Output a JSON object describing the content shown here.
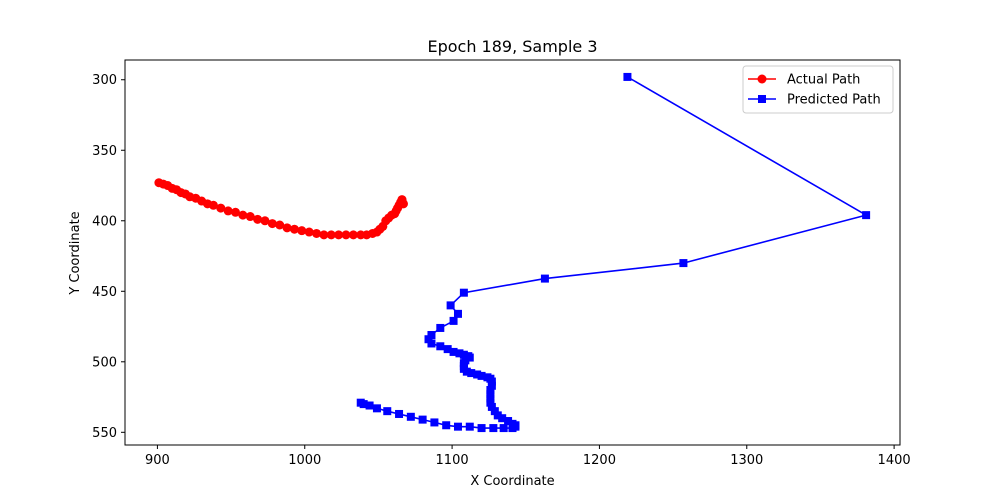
{
  "chart_data": {
    "type": "line",
    "title": "Epoch 189, Sample 3",
    "xlabel": "X Coordinate",
    "ylabel": "Y Coordinate",
    "xlim": [
      878,
      1404
    ],
    "ylim": [
      559,
      286
    ],
    "y_inverted": true,
    "xticks": [
      900,
      1000,
      1100,
      1200,
      1300,
      1400
    ],
    "yticks": [
      300,
      350,
      400,
      450,
      500,
      550
    ],
    "grid": false,
    "legend_position": "top-right",
    "series": [
      {
        "name": "Actual Path",
        "color": "#ff0000",
        "marker": "circle",
        "points": [
          [
            901,
            373
          ],
          [
            904,
            374
          ],
          [
            907,
            375
          ],
          [
            910,
            377
          ],
          [
            913,
            378
          ],
          [
            916,
            380
          ],
          [
            919,
            381
          ],
          [
            922,
            383
          ],
          [
            926,
            384
          ],
          [
            930,
            386
          ],
          [
            934,
            388
          ],
          [
            938,
            389
          ],
          [
            943,
            391
          ],
          [
            948,
            393
          ],
          [
            953,
            394
          ],
          [
            958,
            396
          ],
          [
            963,
            397
          ],
          [
            968,
            399
          ],
          [
            973,
            400
          ],
          [
            978,
            402
          ],
          [
            983,
            403
          ],
          [
            988,
            405
          ],
          [
            993,
            406
          ],
          [
            998,
            407
          ],
          [
            1003,
            408
          ],
          [
            1008,
            409
          ],
          [
            1013,
            410
          ],
          [
            1018,
            410
          ],
          [
            1023,
            410
          ],
          [
            1028,
            410
          ],
          [
            1033,
            410
          ],
          [
            1038,
            410
          ],
          [
            1042,
            410
          ],
          [
            1046,
            409
          ],
          [
            1049,
            408
          ],
          [
            1051,
            406
          ],
          [
            1053,
            404
          ],
          [
            1055,
            400
          ],
          [
            1057,
            398
          ],
          [
            1059,
            396
          ],
          [
            1061,
            395
          ],
          [
            1062,
            393
          ],
          [
            1063,
            391
          ],
          [
            1064,
            389
          ],
          [
            1065,
            387
          ],
          [
            1066,
            386
          ],
          [
            1066,
            385
          ],
          [
            1067,
            388
          ]
        ]
      },
      {
        "name": "Predicted Path",
        "color": "#0000ff",
        "marker": "square",
        "points": [
          [
            1219,
            298
          ],
          [
            1381,
            396
          ],
          [
            1257,
            430
          ],
          [
            1163,
            441
          ],
          [
            1108,
            451
          ],
          [
            1099,
            460
          ],
          [
            1104,
            466
          ],
          [
            1101,
            471
          ],
          [
            1092,
            476
          ],
          [
            1086,
            481
          ],
          [
            1084,
            484
          ],
          [
            1086,
            487
          ],
          [
            1092,
            489
          ],
          [
            1097,
            491
          ],
          [
            1101,
            493
          ],
          [
            1105,
            494
          ],
          [
            1108,
            495
          ],
          [
            1111,
            496
          ],
          [
            1112,
            497
          ],
          [
            1109,
            499
          ],
          [
            1108,
            501
          ],
          [
            1108,
            503
          ],
          [
            1108,
            505
          ],
          [
            1110,
            507
          ],
          [
            1113,
            508
          ],
          [
            1117,
            509
          ],
          [
            1120,
            510
          ],
          [
            1124,
            511
          ],
          [
            1126,
            512
          ],
          [
            1127,
            514
          ],
          [
            1127,
            517
          ],
          [
            1126,
            520
          ],
          [
            1126,
            523
          ],
          [
            1126,
            526
          ],
          [
            1126,
            529
          ],
          [
            1127,
            532
          ],
          [
            1129,
            535
          ],
          [
            1131,
            538
          ],
          [
            1134,
            540
          ],
          [
            1138,
            542
          ],
          [
            1141,
            544
          ],
          [
            1143,
            545
          ],
          [
            1143,
            546
          ],
          [
            1141,
            547
          ],
          [
            1135,
            547
          ],
          [
            1128,
            547
          ],
          [
            1120,
            547
          ],
          [
            1112,
            546
          ],
          [
            1104,
            546
          ],
          [
            1096,
            545
          ],
          [
            1088,
            543
          ],
          [
            1080,
            541
          ],
          [
            1072,
            539
          ],
          [
            1064,
            537
          ],
          [
            1056,
            535
          ],
          [
            1049,
            533
          ],
          [
            1044,
            531
          ],
          [
            1040,
            530
          ],
          [
            1038,
            529
          ]
        ]
      }
    ]
  }
}
